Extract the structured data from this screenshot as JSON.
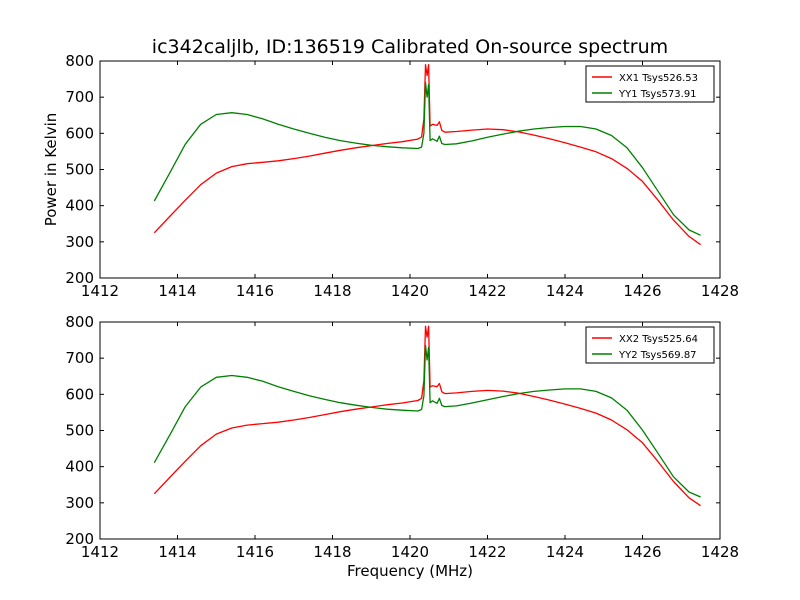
{
  "title": "ic342caljlb, ID:136519 Calibrated On-source spectrum",
  "chart_data": [
    {
      "type": "line",
      "xlabel": "",
      "ylabel": "Power in Kelvin",
      "xlim": [
        1412,
        1428
      ],
      "ylim": [
        200,
        800
      ],
      "xticks": [
        "1412",
        "1414",
        "1416",
        "1418",
        "1420",
        "1422",
        "1424",
        "1426",
        "1428"
      ],
      "yticks": [
        "200",
        "300",
        "400",
        "500",
        "600",
        "700",
        "800"
      ],
      "legend_position": "top-right",
      "series": [
        {
          "name": "XX1 Tsys526.53",
          "color": "#ff0000",
          "x": [
            1413.4,
            1413.8,
            1414.2,
            1414.6,
            1415.0,
            1415.4,
            1415.8,
            1416.2,
            1416.6,
            1417.0,
            1417.4,
            1417.8,
            1418.2,
            1418.6,
            1419.0,
            1419.4,
            1419.8,
            1420.2,
            1420.3,
            1420.36,
            1420.4,
            1420.44,
            1420.48,
            1420.52,
            1420.58,
            1420.7,
            1420.76,
            1420.82,
            1420.9,
            1421.2,
            1421.6,
            1422.0,
            1422.4,
            1422.8,
            1423.2,
            1423.6,
            1424.0,
            1424.4,
            1424.8,
            1425.2,
            1425.6,
            1426.0,
            1426.4,
            1426.8,
            1427.2,
            1427.5
          ],
          "y": [
            325,
            370,
            415,
            458,
            490,
            508,
            516,
            520,
            524,
            530,
            537,
            545,
            553,
            560,
            566,
            572,
            577,
            584,
            590,
            640,
            790,
            760,
            790,
            620,
            625,
            622,
            632,
            608,
            603,
            605,
            609,
            612,
            610,
            604,
            595,
            585,
            574,
            562,
            549,
            530,
            503,
            467,
            415,
            360,
            315,
            292
          ]
        },
        {
          "name": "YY1 Tsys573.91",
          "color": "#008000",
          "x": [
            1413.4,
            1413.8,
            1414.2,
            1414.6,
            1415.0,
            1415.4,
            1415.8,
            1416.2,
            1416.6,
            1417.0,
            1417.4,
            1417.8,
            1418.2,
            1418.6,
            1419.0,
            1419.4,
            1419.8,
            1420.2,
            1420.3,
            1420.36,
            1420.4,
            1420.44,
            1420.48,
            1420.52,
            1420.58,
            1420.7,
            1420.76,
            1420.82,
            1420.9,
            1421.2,
            1421.6,
            1422.0,
            1422.4,
            1422.8,
            1423.2,
            1423.6,
            1424.0,
            1424.4,
            1424.8,
            1425.2,
            1425.6,
            1426.0,
            1426.4,
            1426.8,
            1427.2,
            1427.5
          ],
          "y": [
            413,
            490,
            570,
            625,
            652,
            657,
            652,
            640,
            625,
            612,
            600,
            589,
            580,
            573,
            567,
            563,
            560,
            558,
            562,
            600,
            740,
            700,
            735,
            580,
            585,
            578,
            592,
            572,
            569,
            571,
            579,
            589,
            598,
            606,
            612,
            616,
            619,
            619,
            612,
            594,
            560,
            505,
            440,
            375,
            333,
            318
          ]
        }
      ]
    },
    {
      "type": "line",
      "xlabel": "Frequency (MHz)",
      "ylabel": "",
      "xlim": [
        1412,
        1428
      ],
      "ylim": [
        200,
        800
      ],
      "xticks": [
        "1412",
        "1414",
        "1416",
        "1418",
        "1420",
        "1422",
        "1424",
        "1426",
        "1428"
      ],
      "yticks": [
        "200",
        "300",
        "400",
        "500",
        "600",
        "700",
        "800"
      ],
      "legend_position": "top-right",
      "series": [
        {
          "name": "XX2 Tsys525.64",
          "color": "#ff0000",
          "x": [
            1413.4,
            1413.8,
            1414.2,
            1414.6,
            1415.0,
            1415.4,
            1415.8,
            1416.2,
            1416.6,
            1417.0,
            1417.4,
            1417.8,
            1418.2,
            1418.6,
            1419.0,
            1419.4,
            1419.8,
            1420.2,
            1420.3,
            1420.36,
            1420.4,
            1420.44,
            1420.48,
            1420.52,
            1420.58,
            1420.7,
            1420.76,
            1420.82,
            1420.9,
            1421.2,
            1421.6,
            1422.0,
            1422.4,
            1422.8,
            1423.2,
            1423.6,
            1424.0,
            1424.4,
            1424.8,
            1425.2,
            1425.6,
            1426.0,
            1426.4,
            1426.8,
            1427.2,
            1427.5
          ],
          "y": [
            325,
            370,
            415,
            458,
            490,
            507,
            515,
            519,
            523,
            529,
            536,
            544,
            552,
            559,
            565,
            571,
            576,
            583,
            589,
            638,
            788,
            758,
            788,
            620,
            624,
            621,
            630,
            607,
            602,
            604,
            608,
            611,
            609,
            603,
            594,
            584,
            573,
            561,
            548,
            529,
            502,
            466,
            414,
            359,
            314,
            292
          ]
        },
        {
          "name": "YY2 Tsys569.87",
          "color": "#008000",
          "x": [
            1413.4,
            1413.8,
            1414.2,
            1414.6,
            1415.0,
            1415.4,
            1415.8,
            1416.2,
            1416.6,
            1417.0,
            1417.4,
            1417.8,
            1418.2,
            1418.6,
            1419.0,
            1419.4,
            1419.8,
            1420.2,
            1420.3,
            1420.36,
            1420.4,
            1420.44,
            1420.48,
            1420.52,
            1420.58,
            1420.7,
            1420.76,
            1420.82,
            1420.9,
            1421.2,
            1421.6,
            1422.0,
            1422.4,
            1422.8,
            1423.2,
            1423.6,
            1424.0,
            1424.4,
            1424.8,
            1425.2,
            1425.6,
            1426.0,
            1426.4,
            1426.8,
            1427.2,
            1427.5
          ],
          "y": [
            411,
            487,
            566,
            620,
            647,
            652,
            647,
            636,
            621,
            608,
            596,
            586,
            577,
            570,
            564,
            559,
            556,
            554,
            558,
            596,
            735,
            695,
            730,
            577,
            582,
            575,
            589,
            569,
            566,
            568,
            576,
            585,
            594,
            602,
            608,
            612,
            615,
            615,
            608,
            590,
            556,
            501,
            437,
            372,
            330,
            316
          ]
        }
      ]
    }
  ]
}
